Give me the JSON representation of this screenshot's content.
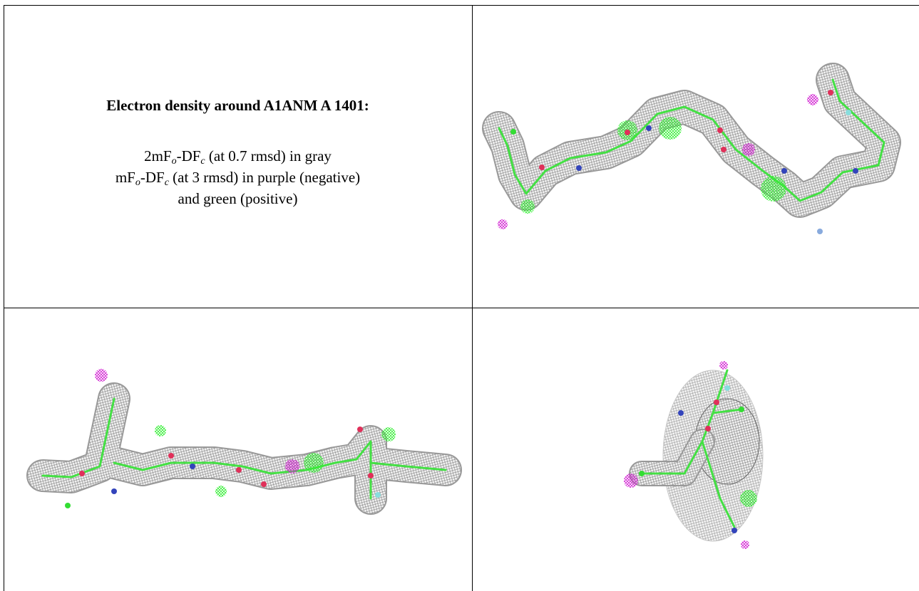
{
  "title": "Electron density around A1ANM A 1401:",
  "legend": [
    [
      "2mF",
      "o",
      "-DF",
      "c",
      " (at 0.7 rmsd) in gray"
    ],
    [
      "mF",
      "o",
      "-DF",
      "c",
      " (at 3 rmsd) in purple (negative)"
    ],
    [
      "and green (positive)"
    ]
  ]
}
